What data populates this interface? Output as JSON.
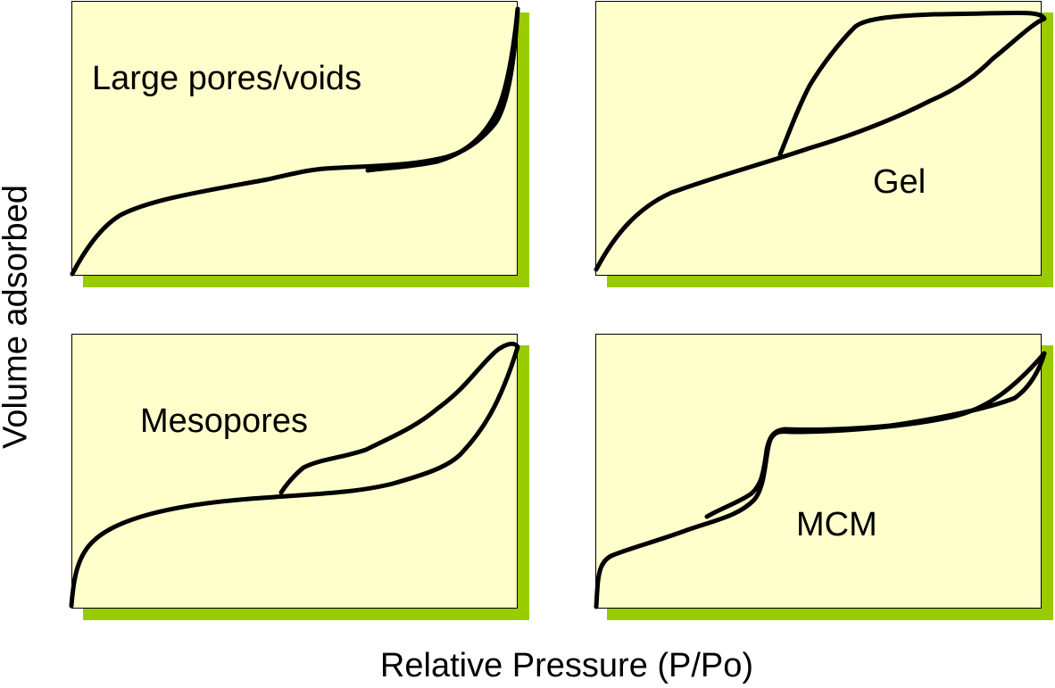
{
  "axes": {
    "x_label": "Relative Pressure (P/Po)",
    "y_label": "Volume adsorbed"
  },
  "colors": {
    "panel_fill": "#ffffcc",
    "panel_shadow": "#99cc00",
    "curve": "#000000"
  },
  "panels": [
    {
      "label": "Large pores/voids"
    },
    {
      "label": "Gel"
    },
    {
      "label": "Mesopores"
    },
    {
      "label": "MCM"
    }
  ]
}
